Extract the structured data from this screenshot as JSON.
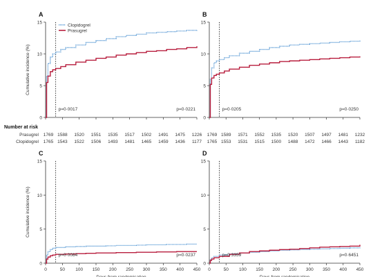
{
  "figure": {
    "ylabel": "Cumulative incidence (%)",
    "xlabel": "Days from randomisation",
    "yticks": [
      0,
      5,
      10,
      15
    ],
    "xticks": [
      0,
      50,
      100,
      150,
      200,
      250,
      300,
      350,
      400,
      450
    ],
    "vline_day": 30
  },
  "legend": {
    "entries": [
      {
        "name": "Clopidogrel",
        "color": "#5b9bd5",
        "style": "dotted"
      },
      {
        "name": "Prasugrel",
        "color": "#b71c3c",
        "style": "solid"
      }
    ]
  },
  "risk_table": {
    "title": "Number at risk",
    "rows": [
      {
        "label": "Prasugrel",
        "left": [
          "1769",
          "1588",
          "1520",
          "1551",
          "1535",
          "1517",
          "1502",
          "1491",
          "1475",
          "1226"
        ],
        "right": [
          "1769",
          "1589",
          "1571",
          "1552",
          "1535",
          "1520",
          "1507",
          "1497",
          "1481",
          "1232"
        ]
      },
      {
        "label": "Clopidogrel",
        "left": [
          "1765",
          "1543",
          "1522",
          "1506",
          "1493",
          "1481",
          "1465",
          "1459",
          "1436",
          "1177"
        ],
        "right": [
          "1765",
          "1553",
          "1531",
          "1515",
          "1500",
          "1488",
          "1472",
          "1466",
          "1443",
          "1182"
        ]
      }
    ]
  },
  "chart_data": [
    {
      "type": "line",
      "panel": "A",
      "pvalue_left": "p=0·0017",
      "pvalue_right": "p=0·0221",
      "xlim": [
        0,
        450
      ],
      "ylim": [
        0,
        15
      ],
      "series": [
        {
          "name": "Clopidogrel",
          "x": [
            0,
            3,
            7,
            14,
            21,
            30,
            45,
            60,
            90,
            120,
            150,
            180,
            210,
            240,
            270,
            300,
            330,
            360,
            390,
            420,
            450
          ],
          "values": [
            0,
            6.5,
            8.5,
            9.5,
            10.0,
            10.3,
            10.7,
            11.0,
            11.4,
            11.8,
            12.1,
            12.4,
            12.7,
            12.9,
            13.1,
            13.3,
            13.4,
            13.5,
            13.6,
            13.7,
            13.8
          ]
        },
        {
          "name": "Prasugrel",
          "x": [
            0,
            3,
            7,
            14,
            21,
            30,
            45,
            60,
            90,
            120,
            150,
            180,
            210,
            240,
            270,
            300,
            330,
            360,
            390,
            420,
            450
          ],
          "values": [
            0,
            5.5,
            6.5,
            7.2,
            7.5,
            7.7,
            8.0,
            8.3,
            8.7,
            9.0,
            9.3,
            9.5,
            9.8,
            10.0,
            10.2,
            10.4,
            10.5,
            10.7,
            10.8,
            11.0,
            11.2
          ]
        }
      ]
    },
    {
      "type": "line",
      "panel": "B",
      "pvalue_left": "p=0·0205",
      "pvalue_right": "p=0·0250",
      "xlim": [
        0,
        450
      ],
      "ylim": [
        0,
        15
      ],
      "series": [
        {
          "name": "Clopidogrel",
          "x": [
            0,
            3,
            7,
            14,
            21,
            30,
            45,
            60,
            90,
            120,
            150,
            180,
            210,
            240,
            270,
            300,
            330,
            360,
            390,
            420,
            450
          ],
          "values": [
            0,
            6.0,
            7.8,
            8.6,
            8.9,
            9.1,
            9.4,
            9.7,
            10.1,
            10.4,
            10.7,
            11.0,
            11.2,
            11.4,
            11.5,
            11.6,
            11.7,
            11.8,
            11.9,
            12.0,
            12.1
          ]
        },
        {
          "name": "Prasugrel",
          "x": [
            0,
            3,
            7,
            14,
            21,
            30,
            45,
            60,
            90,
            120,
            150,
            180,
            210,
            240,
            270,
            300,
            330,
            360,
            390,
            420,
            450
          ],
          "values": [
            0,
            5.2,
            6.2,
            6.6,
            6.8,
            7.0,
            7.3,
            7.6,
            7.9,
            8.2,
            8.4,
            8.6,
            8.8,
            8.9,
            9.0,
            9.1,
            9.2,
            9.3,
            9.4,
            9.5,
            9.6
          ]
        }
      ]
    },
    {
      "type": "line",
      "panel": "C",
      "pvalue_left": "p=0·0084",
      "pvalue_right": "p=0·0237",
      "xlim": [
        0,
        450
      ],
      "ylim": [
        0,
        15
      ],
      "series": [
        {
          "name": "Clopidogrel",
          "x": [
            0,
            3,
            7,
            14,
            21,
            30,
            60,
            90,
            120,
            150,
            180,
            210,
            240,
            270,
            300,
            330,
            360,
            390,
            420,
            450
          ],
          "values": [
            0,
            1.2,
            1.7,
            2.0,
            2.2,
            2.3,
            2.4,
            2.45,
            2.5,
            2.5,
            2.55,
            2.6,
            2.6,
            2.65,
            2.7,
            2.7,
            2.75,
            2.75,
            2.8,
            2.8
          ]
        },
        {
          "name": "Prasugrel",
          "x": [
            0,
            3,
            7,
            14,
            21,
            30,
            60,
            90,
            120,
            150,
            180,
            210,
            240,
            270,
            300,
            330,
            360,
            390,
            420,
            450
          ],
          "values": [
            0,
            0.6,
            0.9,
            1.1,
            1.2,
            1.3,
            1.35,
            1.4,
            1.45,
            1.5,
            1.5,
            1.55,
            1.55,
            1.6,
            1.6,
            1.65,
            1.65,
            1.7,
            1.7,
            1.7
          ]
        }
      ]
    },
    {
      "type": "line",
      "panel": "D",
      "pvalue_left": "p=0·3359",
      "pvalue_right": "p=0·6451",
      "xlim": [
        0,
        450
      ],
      "ylim": [
        0,
        15
      ],
      "series": [
        {
          "name": "Clopidogrel",
          "x": [
            0,
            3,
            7,
            14,
            30,
            60,
            90,
            120,
            150,
            180,
            210,
            240,
            270,
            300,
            330,
            360,
            390,
            420,
            450
          ],
          "values": [
            0,
            0.5,
            0.8,
            1.0,
            1.2,
            1.35,
            1.5,
            1.6,
            1.7,
            1.8,
            1.9,
            1.95,
            2.0,
            2.05,
            2.1,
            2.15,
            2.2,
            2.25,
            2.3
          ]
        },
        {
          "name": "Prasugrel",
          "x": [
            0,
            3,
            7,
            14,
            30,
            60,
            90,
            120,
            150,
            180,
            210,
            240,
            270,
            300,
            330,
            360,
            390,
            420,
            450
          ],
          "values": [
            0,
            0.4,
            0.6,
            0.8,
            1.0,
            1.3,
            1.5,
            1.7,
            1.8,
            1.9,
            2.0,
            2.05,
            2.15,
            2.25,
            2.35,
            2.4,
            2.45,
            2.5,
            2.7
          ]
        }
      ]
    }
  ]
}
